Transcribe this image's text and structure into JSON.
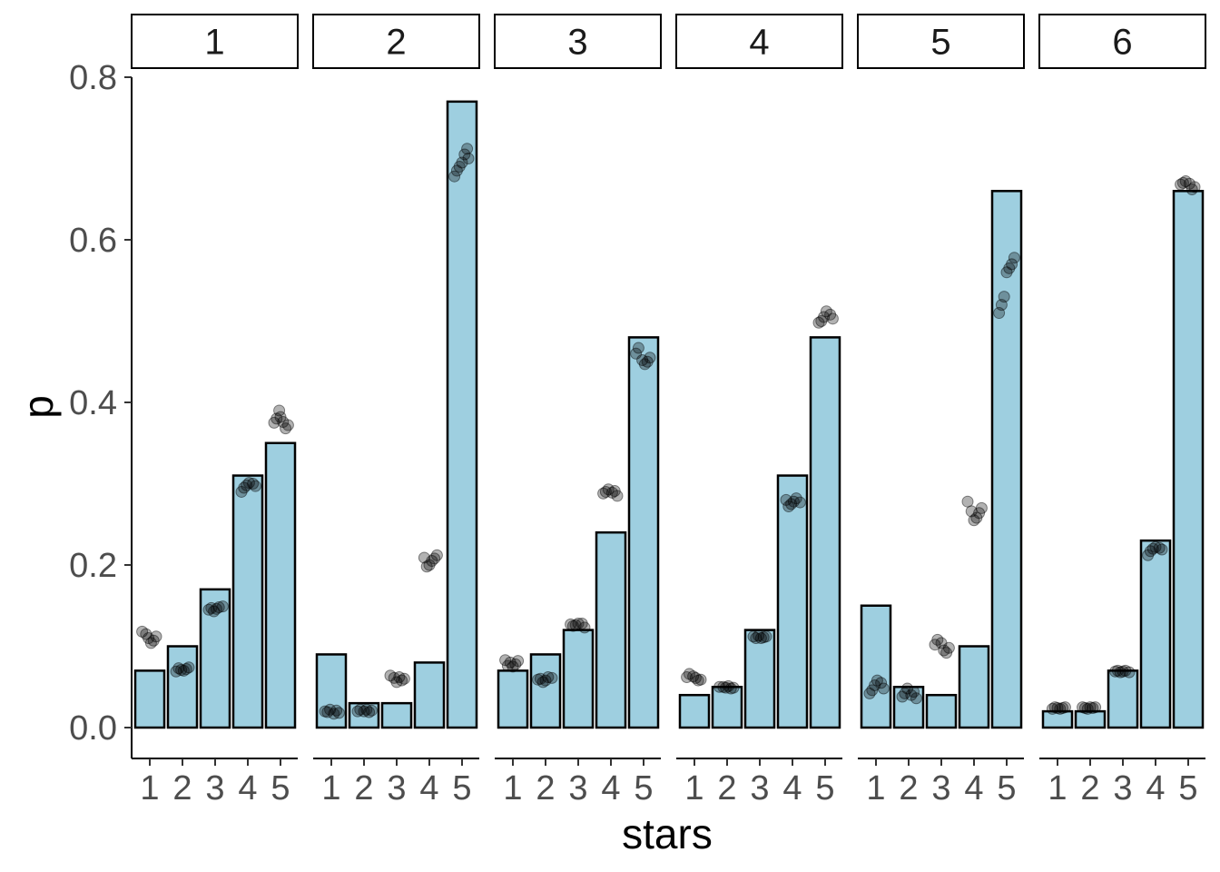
{
  "chart_data": {
    "type": "bar",
    "xlabel": "stars",
    "ylabel": "p",
    "ylim": [
      0,
      0.8
    ],
    "yticks": [
      "0.0",
      "0.2",
      "0.4",
      "0.6",
      "0.8"
    ],
    "ytick_values": [
      0.0,
      0.2,
      0.4,
      0.6,
      0.8
    ],
    "categories": [
      "1",
      "2",
      "3",
      "4",
      "5"
    ],
    "grid": false,
    "legend": "none",
    "colors": {
      "bar_fill": "#9ecfe0",
      "bar_stroke": "#000000",
      "point": "#000000"
    },
    "facets": [
      {
        "label": "1",
        "values": [
          0.07,
          0.1,
          0.17,
          0.31,
          0.35
        ],
        "points": [
          [
            0.118,
            0.112,
            0.107,
            0.104,
            0.11,
            0.115
          ],
          [
            0.074,
            0.072,
            0.07,
            0.071,
            0.073,
            0.069
          ],
          [
            0.148,
            0.146,
            0.143,
            0.147,
            0.145,
            0.149
          ],
          [
            0.301,
            0.298,
            0.295,
            0.29,
            0.297,
            0.3
          ],
          [
            0.39,
            0.38,
            0.375,
            0.372,
            0.368,
            0.376,
            0.382
          ]
        ]
      },
      {
        "label": "2",
        "values": [
          0.09,
          0.03,
          0.03,
          0.08,
          0.77
        ],
        "points": [
          [
            0.022,
            0.019,
            0.02,
            0.018,
            0.021,
            0.017
          ],
          [
            0.022,
            0.02,
            0.021,
            0.019,
            0.022,
            0.02
          ],
          [
            0.064,
            0.06,
            0.058,
            0.062,
            0.056,
            0.061
          ],
          [
            0.212,
            0.208,
            0.205,
            0.2,
            0.198,
            0.209
          ],
          [
            0.712,
            0.705,
            0.695,
            0.69,
            0.685,
            0.678,
            0.7
          ]
        ]
      },
      {
        "label": "3",
        "values": [
          0.07,
          0.09,
          0.12,
          0.24,
          0.48
        ],
        "points": [
          [
            0.082,
            0.078,
            0.075,
            0.08,
            0.076,
            0.083
          ],
          [
            0.062,
            0.058,
            0.056,
            0.06,
            0.059,
            0.061
          ],
          [
            0.128,
            0.126,
            0.125,
            0.127,
            0.123,
            0.128
          ],
          [
            0.293,
            0.29,
            0.288,
            0.285,
            0.291,
            0.289
          ],
          [
            0.467,
            0.46,
            0.455,
            0.45,
            0.447,
            0.452
          ]
        ]
      },
      {
        "label": "4",
        "values": [
          0.04,
          0.05,
          0.12,
          0.31,
          0.48
        ],
        "points": [
          [
            0.066,
            0.062,
            0.059,
            0.058,
            0.061,
            0.063
          ],
          [
            0.05,
            0.049,
            0.048,
            0.051,
            0.049,
            0.05
          ],
          [
            0.112,
            0.111,
            0.11,
            0.113,
            0.11,
            0.112
          ],
          [
            0.282,
            0.278,
            0.275,
            0.272,
            0.28,
            0.277
          ],
          [
            0.512,
            0.505,
            0.5,
            0.498,
            0.503,
            0.508
          ]
        ]
      },
      {
        "label": "5",
        "values": [
          0.15,
          0.05,
          0.04,
          0.1,
          0.66
        ],
        "points": [
          [
            0.058,
            0.052,
            0.046,
            0.042,
            0.048,
            0.055
          ],
          [
            0.048,
            0.042,
            0.038,
            0.036,
            0.044,
            0.04
          ],
          [
            0.108,
            0.102,
            0.098,
            0.092,
            0.095,
            0.104
          ],
          [
            0.278,
            0.27,
            0.264,
            0.258,
            0.255,
            0.266
          ],
          [
            0.578,
            0.57,
            0.565,
            0.56,
            0.53,
            0.52,
            0.51
          ]
        ]
      },
      {
        "label": "6",
        "values": [
          0.02,
          0.02,
          0.07,
          0.23,
          0.66
        ],
        "points": [
          [
            0.025,
            0.024,
            0.023,
            0.024,
            0.025,
            0.023
          ],
          [
            0.025,
            0.024,
            0.025,
            0.023,
            0.024,
            0.025
          ],
          [
            0.07,
            0.069,
            0.068,
            0.07,
            0.069,
            0.068
          ],
          [
            0.222,
            0.22,
            0.217,
            0.212,
            0.219,
            0.221
          ],
          [
            0.672,
            0.67,
            0.668,
            0.665,
            0.662,
            0.669
          ]
        ]
      }
    ]
  }
}
